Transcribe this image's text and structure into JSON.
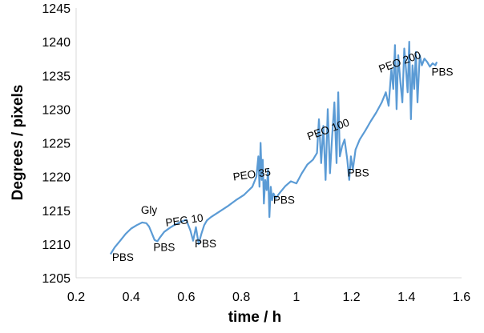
{
  "chart_data": {
    "type": "line",
    "xlabel": "time / h",
    "ylabel": "Degrees / pixels",
    "xlim": [
      0.2,
      1.6
    ],
    "ylim": [
      1205,
      1245
    ],
    "xticks": [
      "0.2",
      "0.4",
      "0.6",
      "0.8",
      "1",
      "1.2",
      "1.4",
      "1.6"
    ],
    "yticks": [
      "1205",
      "1210",
      "1215",
      "1220",
      "1225",
      "1230",
      "1235",
      "1240",
      "1245"
    ],
    "grid": false,
    "legend": "none",
    "line_color": "#5b9bd5",
    "series": [
      {
        "x": [
          0.325,
          0.34,
          0.36,
          0.38,
          0.4,
          0.42,
          0.44,
          0.455,
          0.465,
          0.475,
          0.485,
          0.495,
          0.505,
          0.52,
          0.54,
          0.56,
          0.58,
          0.6,
          0.615,
          0.625,
          0.635,
          0.645,
          0.655,
          0.665,
          0.675,
          0.69,
          0.72,
          0.75,
          0.78,
          0.81,
          0.84,
          0.855,
          0.862,
          0.866,
          0.87,
          0.874,
          0.878,
          0.882,
          0.887,
          0.892,
          0.897,
          0.902,
          0.907,
          0.912,
          0.917,
          0.925,
          0.94,
          0.96,
          0.98,
          1.0,
          1.02,
          1.04,
          1.06,
          1.075,
          1.082,
          1.09,
          1.098,
          1.106,
          1.114,
          1.122,
          1.13,
          1.138,
          1.146,
          1.152,
          1.158,
          1.166,
          1.175,
          1.185,
          1.192,
          1.198,
          1.205,
          1.215,
          1.23,
          1.25,
          1.27,
          1.29,
          1.31,
          1.325,
          1.335,
          1.345,
          1.352,
          1.358,
          1.364,
          1.37,
          1.378,
          1.385,
          1.392,
          1.398,
          1.404,
          1.41,
          1.416,
          1.422,
          1.428,
          1.434,
          1.44,
          1.448,
          1.456,
          1.465,
          1.475,
          1.485,
          1.495,
          1.505,
          1.51
        ],
        "y": [
          1208.5,
          1209.5,
          1210.5,
          1211.5,
          1212.3,
          1212.8,
          1213.2,
          1213.1,
          1212.6,
          1211.6,
          1210.6,
          1210.4,
          1211.0,
          1211.8,
          1212.4,
          1212.9,
          1213.3,
          1213.6,
          1212.0,
          1210.5,
          1212.5,
          1210.0,
          1211.5,
          1212.8,
          1213.5,
          1214.0,
          1214.8,
          1215.6,
          1216.5,
          1217.3,
          1218.5,
          1220.0,
          1223.0,
          1218.5,
          1225.0,
          1219.5,
          1222.5,
          1216.0,
          1219.5,
          1218.0,
          1221.0,
          1214.0,
          1218.5,
          1216.5,
          1217.5,
          1216.8,
          1217.6,
          1218.6,
          1219.3,
          1219.0,
          1220.5,
          1221.8,
          1222.5,
          1223.5,
          1228.5,
          1222.0,
          1227.5,
          1219.5,
          1230.0,
          1220.5,
          1226.0,
          1231.0,
          1222.0,
          1232.5,
          1223.0,
          1224.5,
          1225.5,
          1222.5,
          1219.5,
          1223.0,
          1221.0,
          1224.0,
          1225.5,
          1226.8,
          1228.2,
          1229.5,
          1231.0,
          1232.5,
          1230.5,
          1236.0,
          1233.0,
          1239.5,
          1230.0,
          1238.0,
          1234.0,
          1231.0,
          1239.0,
          1236.0,
          1232.5,
          1240.0,
          1228.5,
          1236.5,
          1233.0,
          1238.5,
          1231.0,
          1238.0,
          1236.5,
          1237.5,
          1237.0,
          1236.3,
          1236.8,
          1236.5,
          1237.0
        ]
      }
    ],
    "annotations": [
      {
        "text": "PBS",
        "x": 0.37,
        "y": 1207.5
      },
      {
        "text": "Gly",
        "x": 0.465,
        "y": 1214.5
      },
      {
        "text": "PBS",
        "x": 0.52,
        "y": 1209.0
      },
      {
        "text": "PEG 10",
        "x": 0.595,
        "y": 1213.0,
        "rotate": -8
      },
      {
        "text": "PBS",
        "x": 0.67,
        "y": 1209.5
      },
      {
        "text": "PEO 35",
        "x": 0.84,
        "y": 1219.8,
        "rotate": -8
      },
      {
        "text": "PBS",
        "x": 0.955,
        "y": 1216.0
      },
      {
        "text": "PEO 100",
        "x": 1.12,
        "y": 1226.5,
        "rotate": -20
      },
      {
        "text": "PBS",
        "x": 1.225,
        "y": 1220.0
      },
      {
        "text": "PEO 200",
        "x": 1.38,
        "y": 1236.5,
        "rotate": -20
      },
      {
        "text": "PBS",
        "x": 1.53,
        "y": 1235.0
      }
    ]
  }
}
